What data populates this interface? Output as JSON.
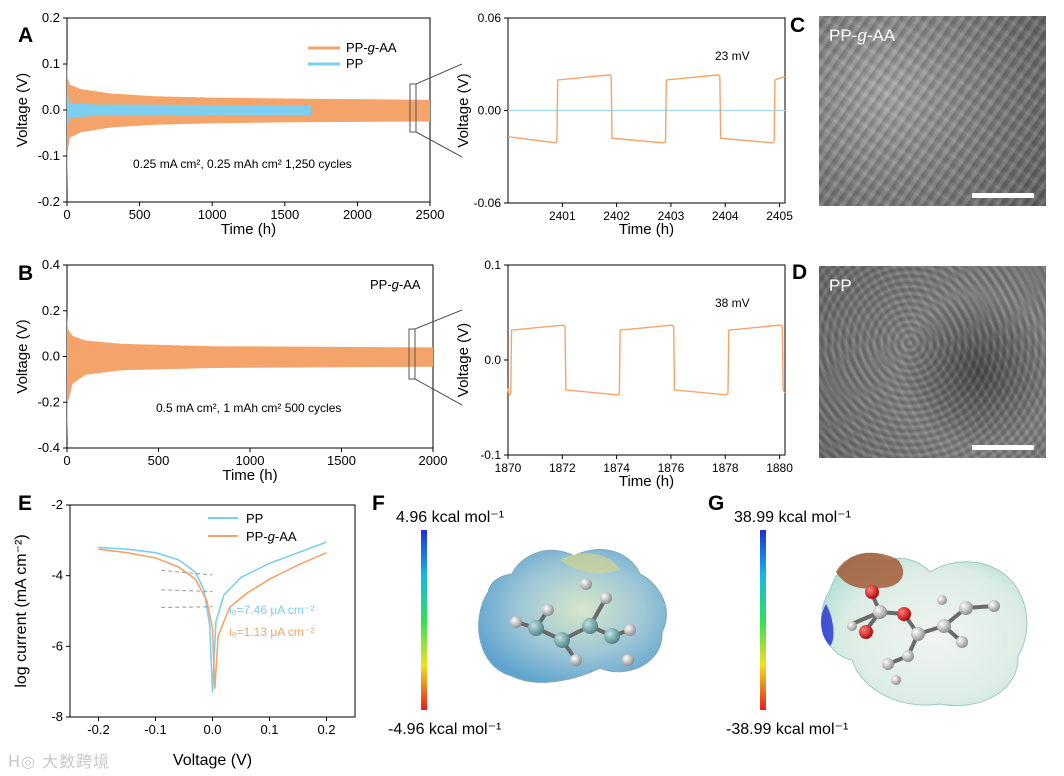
{
  "panels": {
    "A": {
      "letter": "A",
      "chart_data": {
        "type": "line",
        "xlabel": "Time (h)",
        "ylabel": "Voltage (V)",
        "xlim": [
          0,
          2500
        ],
        "ylim": [
          -0.2,
          0.2
        ],
        "xticks": [
          0,
          500,
          1000,
          1500,
          2000,
          2500
        ],
        "yticks": [
          -0.2,
          -0.1,
          0.0,
          0.1,
          0.2
        ],
        "ytick_labels": [
          "-0.2",
          "-0.1",
          "0.0",
          "0.1",
          "0.2"
        ],
        "annotation": "0.25 mA cm², 0.25 mAh cm²  1,250 cycles",
        "legend": [
          {
            "name": "PP-",
            "italic": "g",
            "suffix": "-AA",
            "color": "#f4a46a"
          },
          {
            "name": "PP",
            "italic": "",
            "suffix": "",
            "color": "#7ccfee"
          }
        ],
        "series": [
          {
            "name": "PP-g-AA",
            "color": "#f4a46a",
            "x_end": 2500,
            "envelope": [
              [
                0,
                0.11,
                -0.175
              ],
              [
                5,
                0.07,
                -0.09
              ],
              [
                20,
                0.055,
                -0.06
              ],
              [
                100,
                0.045,
                -0.048
              ],
              [
                300,
                0.036,
                -0.038
              ],
              [
                600,
                0.03,
                -0.032
              ],
              [
                1000,
                0.027,
                -0.029
              ],
              [
                1500,
                0.025,
                -0.027
              ],
              [
                2500,
                0.022,
                -0.025
              ]
            ]
          },
          {
            "name": "PP",
            "color": "#7ccfee",
            "x_end": 1680,
            "envelope": [
              [
                0,
                0.04,
                -0.04
              ],
              [
                20,
                0.015,
                -0.016
              ],
              [
                200,
                0.012,
                -0.013
              ],
              [
                1680,
                0.01,
                -0.011
              ]
            ]
          }
        ]
      }
    },
    "A_zoom": {
      "chart_data": {
        "type": "line",
        "xlabel": "Time (h)",
        "ylabel": "Voltage (V)",
        "xlim": [
          2400,
          2405.1
        ],
        "ylim": [
          -0.06,
          0.06
        ],
        "xticks": [
          2401,
          2402,
          2403,
          2404,
          2405
        ],
        "yticks": [
          -0.06,
          0.0,
          0.06
        ],
        "ytick_labels": [
          "-0.06",
          "0.00",
          "0.06"
        ],
        "annotation": "23 mV",
        "square_wave": {
          "color": "#f4a46a",
          "high": 0.022,
          "low": -0.02,
          "period": 2,
          "edges": [
            2400.9,
            2401.9,
            2402.9,
            2403.9,
            2404.9
          ]
        },
        "baseline": {
          "color": "#9fd6f2",
          "value": 0.0
        }
      }
    },
    "B": {
      "letter": "B",
      "chart_data": {
        "type": "line",
        "xlabel": "Time (h)",
        "ylabel": "Voltage (V)",
        "xlim": [
          0,
          2000
        ],
        "ylim": [
          -0.4,
          0.4
        ],
        "xticks": [
          0,
          500,
          1000,
          1500,
          2000
        ],
        "yticks": [
          -0.4,
          -0.2,
          0.0,
          0.2,
          0.4
        ],
        "ytick_labels": [
          "-0.4",
          "-0.2",
          "0.0",
          "0.2",
          "0.4"
        ],
        "annotation": "0.5 mA cm², 1 mAh cm²  500 cycles",
        "label": {
          "prefix": "PP-",
          "italic": "g",
          "suffix": "-AA"
        },
        "series": [
          {
            "name": "PP-g-AA",
            "color": "#f4a46a",
            "x_end": 2000,
            "envelope": [
              [
                0,
                0.18,
                -0.36
              ],
              [
                5,
                0.12,
                -0.2
              ],
              [
                30,
                0.09,
                -0.12
              ],
              [
                100,
                0.07,
                -0.08
              ],
              [
                300,
                0.055,
                -0.06
              ],
              [
                800,
                0.045,
                -0.05
              ],
              [
                2000,
                0.04,
                -0.045
              ]
            ]
          }
        ]
      }
    },
    "B_zoom": {
      "chart_data": {
        "type": "line",
        "xlabel": "Time (h)",
        "ylabel": "Voltage (V)",
        "xlim": [
          1870,
          1880.2
        ],
        "ylim": [
          -0.1,
          0.1
        ],
        "xticks": [
          1870,
          1872,
          1874,
          1876,
          1878,
          1880
        ],
        "yticks": [
          -0.1,
          0.0,
          0.1
        ],
        "ytick_labels": [
          "-0.1",
          "0.0",
          "0.1"
        ],
        "annotation": "38 mV",
        "square_wave": {
          "color": "#f4a46a",
          "high": 0.035,
          "low": -0.035,
          "period": 4,
          "edges": [
            1870.1,
            1872.1,
            1874.1,
            1876.1,
            1878.1,
            1880.1
          ]
        }
      }
    },
    "C": {
      "letter": "C",
      "label": {
        "prefix": "PP-",
        "italic": "g",
        "suffix": "-AA"
      }
    },
    "D": {
      "letter": "D",
      "label": "PP"
    },
    "E": {
      "letter": "E",
      "chart_data": {
        "type": "line",
        "xlabel": "Voltage (V)",
        "ylabel": "log current (mA cm⁻²)",
        "xlim": [
          -0.25,
          0.25
        ],
        "ylim": [
          -8,
          -2
        ],
        "xticks": [
          -0.2,
          -0.1,
          0.0,
          0.1,
          0.2
        ],
        "xtick_labels": [
          "-0.2",
          "-0.1",
          "0.0",
          "0.1",
          "0.2"
        ],
        "yticks": [
          -8,
          -6,
          -4,
          -2
        ],
        "ytick_labels": [
          "-8",
          "-6",
          "-4",
          "-2"
        ],
        "legend": [
          {
            "name": "PP",
            "italic": "",
            "suffix": "",
            "color": "#7ccfee"
          },
          {
            "name": "PP-",
            "italic": "g",
            "suffix": "-AA",
            "color": "#f4a46a"
          }
        ],
        "series": [
          {
            "name": "PP",
            "color": "#7ccfee",
            "points": [
              [
                -0.2,
                -3.2
              ],
              [
                -0.15,
                -3.25
              ],
              [
                -0.1,
                -3.35
              ],
              [
                -0.06,
                -3.55
              ],
              [
                -0.03,
                -3.9
              ],
              [
                -0.015,
                -4.4
              ],
              [
                -0.005,
                -5.4
              ],
              [
                0.0,
                -7.3
              ],
              [
                0.006,
                -5.3
              ],
              [
                0.02,
                -4.55
              ],
              [
                0.05,
                -4.05
              ],
              [
                0.1,
                -3.65
              ],
              [
                0.15,
                -3.35
              ],
              [
                0.2,
                -3.05
              ]
            ]
          },
          {
            "name": "PP-g-AA",
            "color": "#f4a46a",
            "points": [
              [
                -0.2,
                -3.25
              ],
              [
                -0.15,
                -3.35
              ],
              [
                -0.1,
                -3.5
              ],
              [
                -0.06,
                -3.75
              ],
              [
                -0.03,
                -4.1
              ],
              [
                -0.01,
                -4.7
              ],
              [
                0.0,
                -5.5
              ],
              [
                0.004,
                -7.2
              ],
              [
                0.01,
                -5.7
              ],
              [
                0.03,
                -4.9
              ],
              [
                0.06,
                -4.5
              ],
              [
                0.1,
                -4.1
              ],
              [
                0.15,
                -3.7
              ],
              [
                0.2,
                -3.35
              ]
            ]
          }
        ],
        "annotations": [
          {
            "text": "i₀=7.46 μA cm⁻²",
            "color": "#7ccfee"
          },
          {
            "text": "i₀=1.13 μA cm⁻²",
            "color": "#f4a46a"
          }
        ]
      }
    },
    "F": {
      "letter": "F",
      "top": "4.96 kcal mol⁻¹",
      "bottom": "-4.96 kcal mol⁻¹"
    },
    "G": {
      "letter": "G",
      "top": "38.99 kcal mol⁻¹",
      "bottom": "-38.99 kcal mol⁻¹"
    }
  },
  "watermark": "大数跨境"
}
